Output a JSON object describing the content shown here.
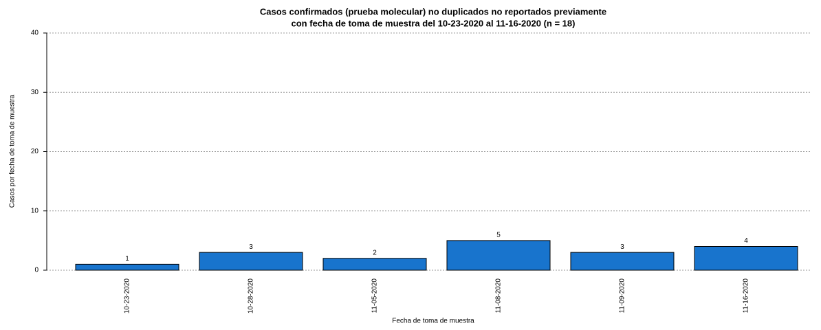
{
  "chart_data": {
    "type": "bar",
    "title": [
      "Casos confirmados (prueba molecular) no duplicados no reportados previamente",
      "con fecha de toma de muestra del 10-23-2020 al 11-16-2020 (n = 18)"
    ],
    "x_label": "Fecha de toma de muestra",
    "y_label": "Casos por fecha de toma de muestra",
    "categories": [
      "10-23-2020",
      "10-28-2020",
      "11-05-2020",
      "11-08-2020",
      "11-09-2020",
      "11-16-2020"
    ],
    "values": [
      1,
      3,
      2,
      5,
      3,
      4
    ],
    "color": "#1874cd",
    "ylim": [
      0,
      40
    ],
    "yticks": [
      0,
      10,
      20,
      30,
      40
    ],
    "grid": true
  }
}
